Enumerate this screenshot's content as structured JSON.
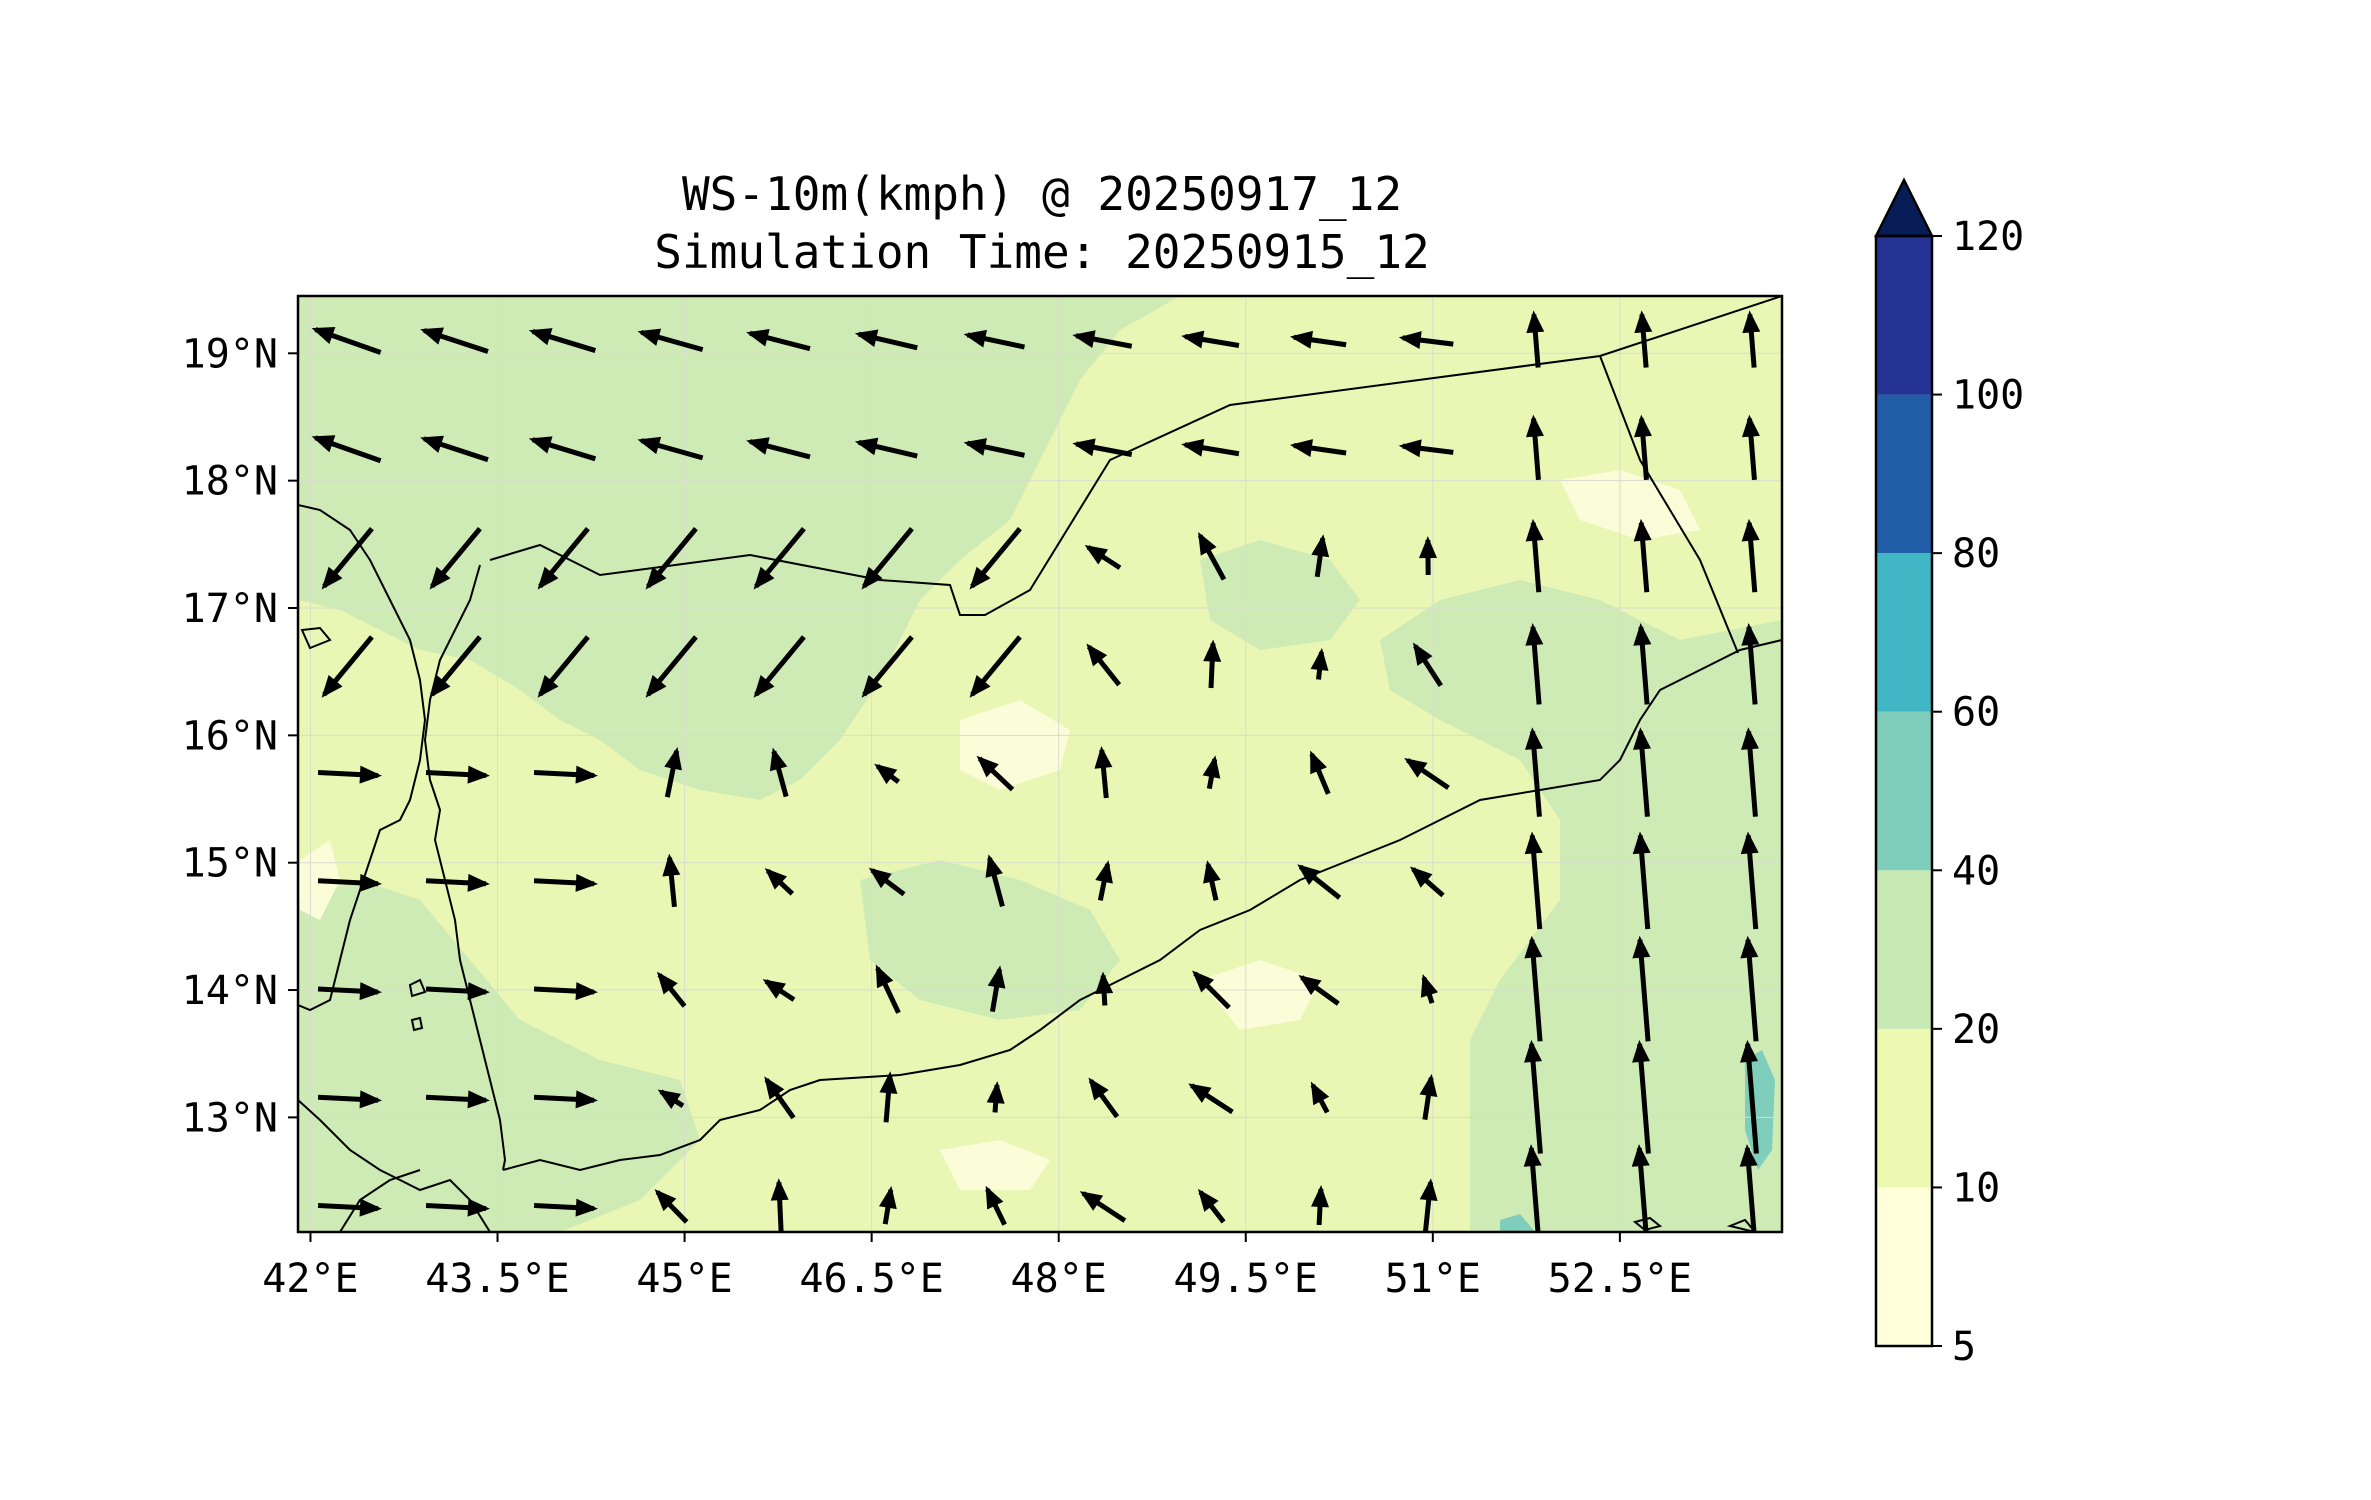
{
  "title": {
    "line1": "WS-10m(kmph) @ 20250917_12",
    "line2": "Simulation Time: 20250915_12"
  },
  "map": {
    "x_ticks": [
      "42°E",
      "43.5°E",
      "45°E",
      "46.5°E",
      "48°E",
      "49.5°E",
      "51°E",
      "52.5°E"
    ],
    "y_ticks": [
      "19°N",
      "18°N",
      "17°N",
      "16°N",
      "15°N",
      "14°N",
      "13°N"
    ],
    "base_color": "#e9f6b4",
    "grid": true,
    "lon_range": [
      41.9,
      53.8
    ],
    "lat_range": [
      12.1,
      19.45
    ]
  },
  "colorbar": {
    "labels": [
      "5",
      "10",
      "20",
      "40",
      "60",
      "80",
      "100",
      "120"
    ],
    "colors": [
      "#ffffd9",
      "#edf8b1",
      "#c7e9b4",
      "#7fcdbb",
      "#41b6c4",
      "#225ea8",
      "#253494",
      "#081d58"
    ],
    "extend": "max"
  },
  "chart_data": {
    "type": "heatmap",
    "title": "WS-10m(kmph) @ 20250917_12 / Simulation Time: 20250915_12",
    "xlabel": "",
    "ylabel": "",
    "xlim": [
      41.9,
      53.8
    ],
    "ylim": [
      12.1,
      19.45
    ],
    "levels": [
      5,
      10,
      20,
      40,
      60,
      80,
      100,
      120
    ],
    "fields": [
      {
        "name": "regions",
        "values": [
          "northwest interior mostly 20-40",
          "central plateau mostly 10-20",
          "eastern strip near 52.5°E 20-40",
          "small patch near 53.6°E 13°N 40-60"
        ]
      }
    ]
  }
}
